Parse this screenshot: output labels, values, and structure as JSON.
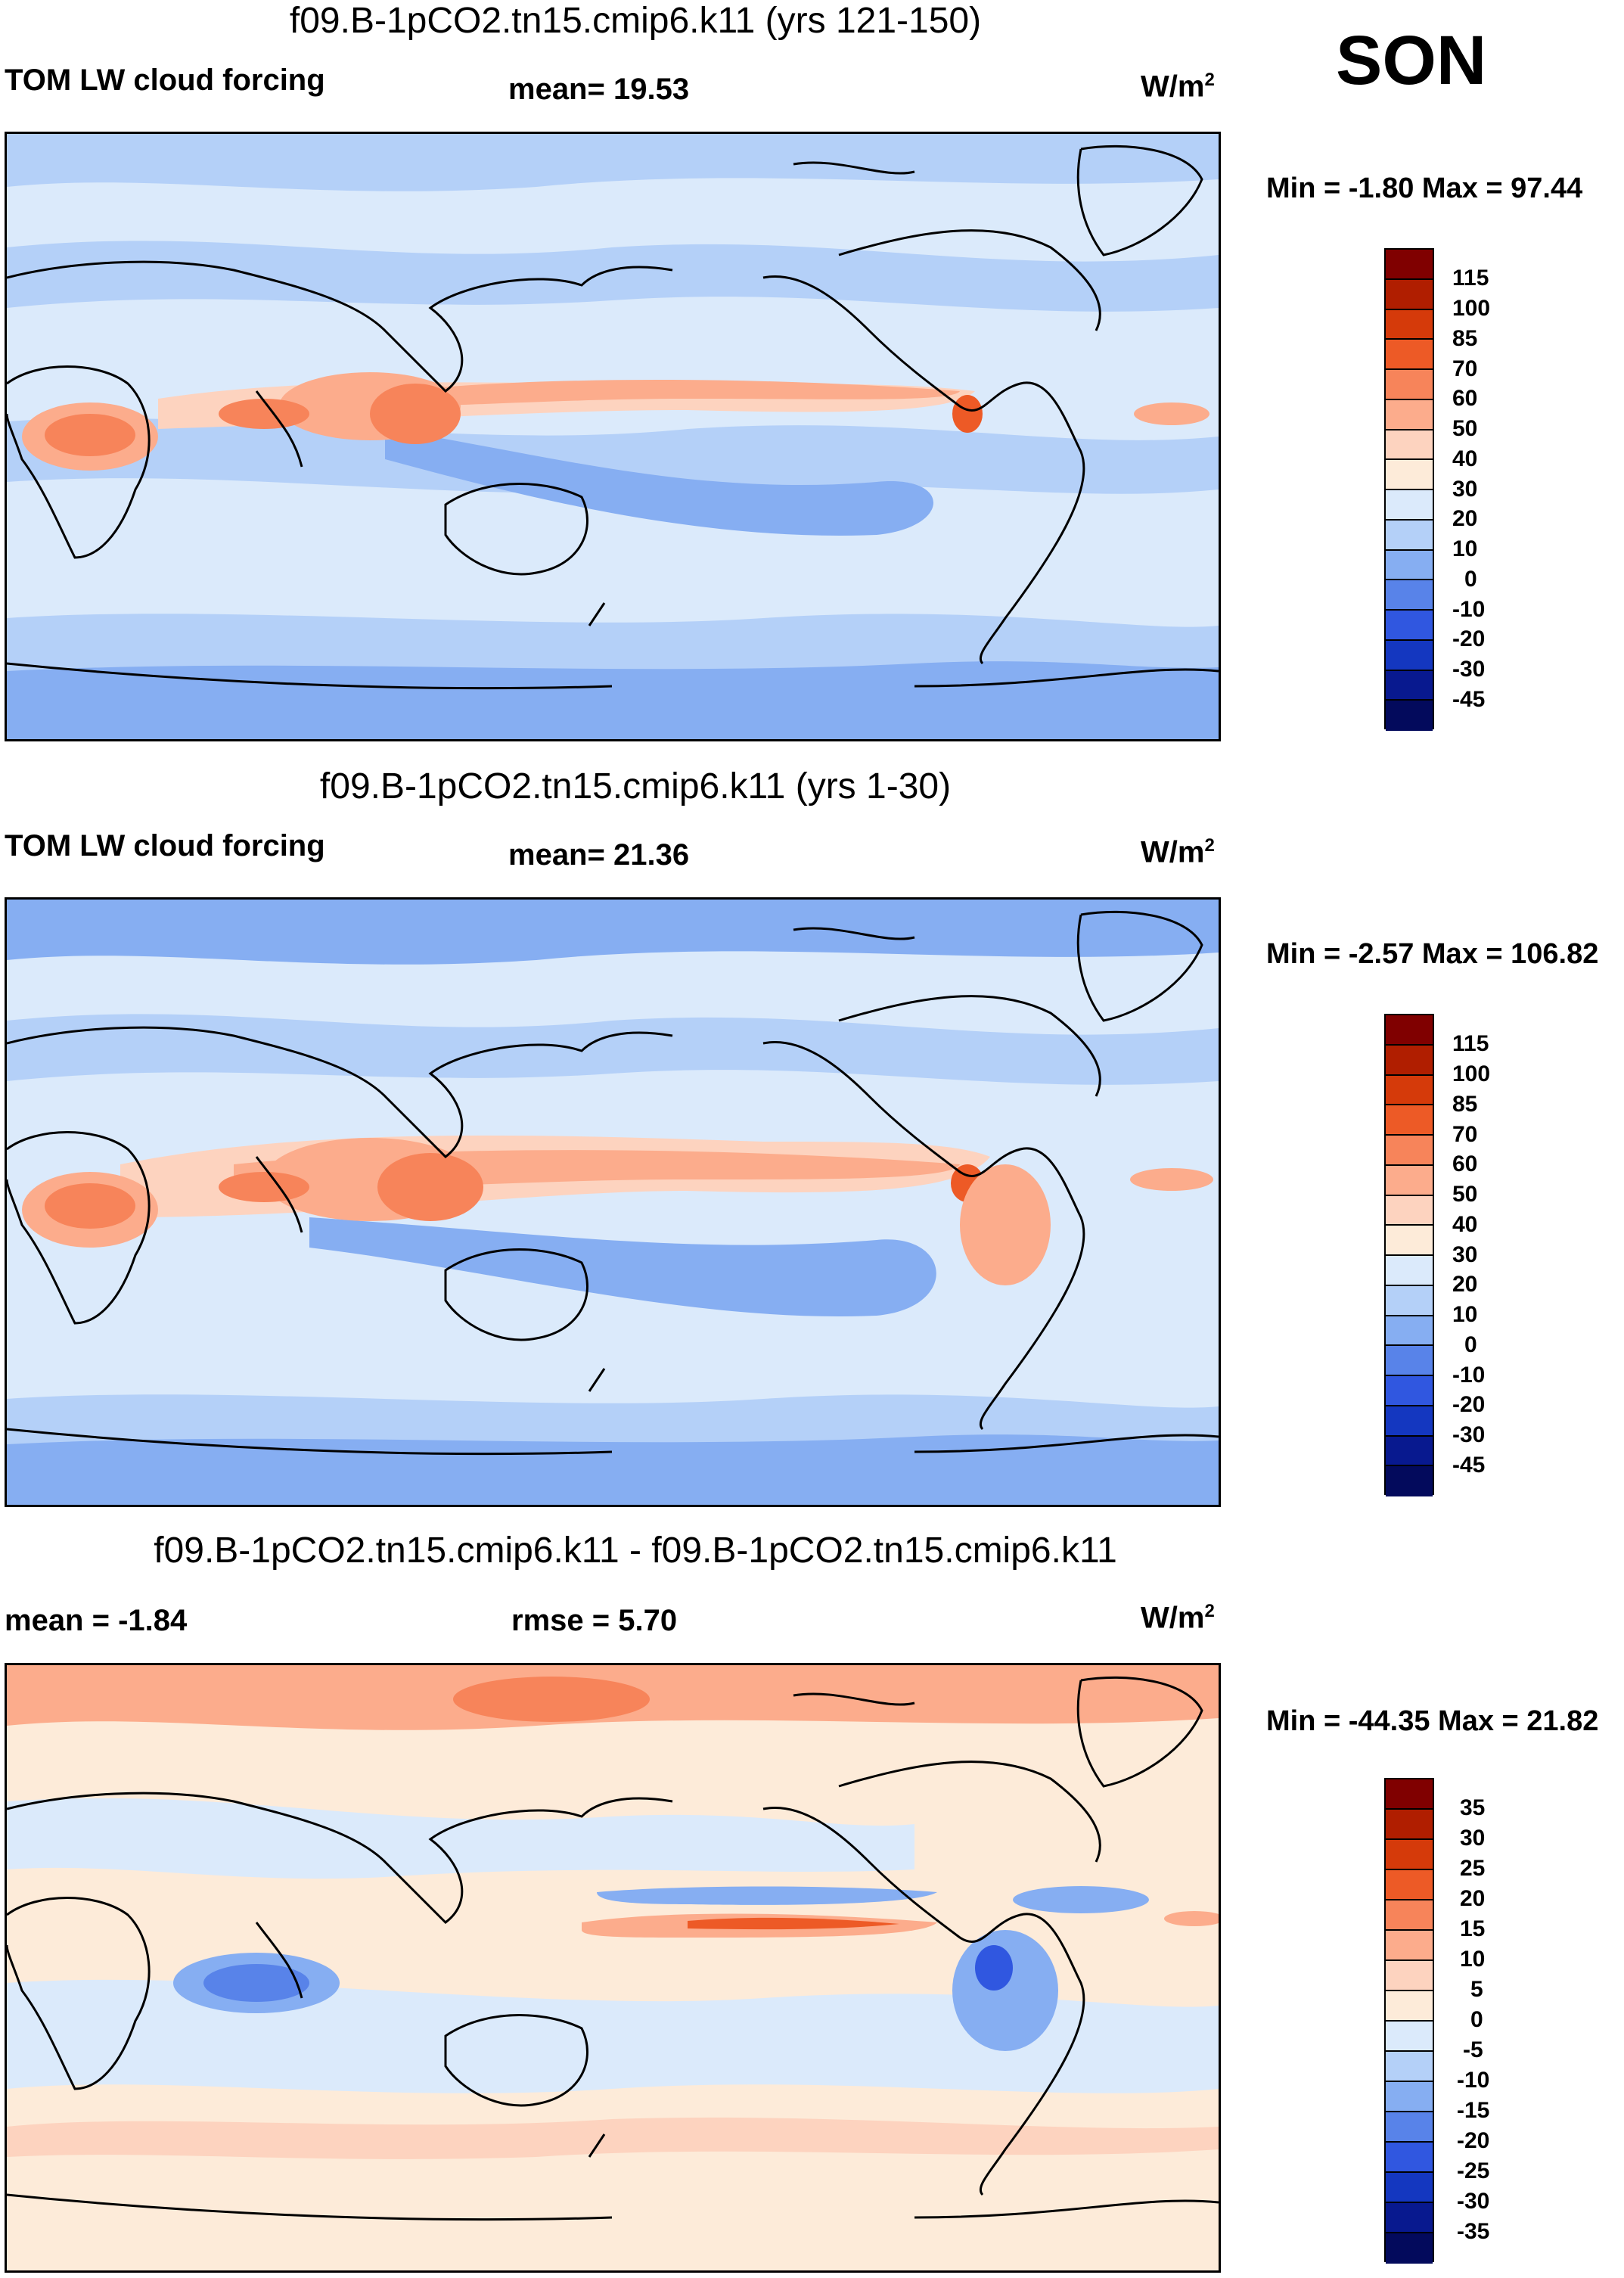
{
  "season": "SON",
  "panels": [
    {
      "title": "f09.B-1pCO2.tn15.cmip6.k11 (yrs 121-150)",
      "left_label": "TOM LW cloud forcing",
      "center_label": "mean=  19.53",
      "units": "W/m",
      "units_exp": "2",
      "minmax": "Min =  -1.80 Max =  97.44",
      "colorbar_levels": [
        "115",
        "100",
        "85",
        "70",
        "60",
        "50",
        "40",
        "30",
        "20",
        "10",
        "0",
        "-10",
        "-20",
        "-30",
        "-45"
      ]
    },
    {
      "title": "f09.B-1pCO2.tn15.cmip6.k11 (yrs 1-30)",
      "left_label": "TOM LW cloud forcing",
      "center_label": "mean=  21.36",
      "units": "W/m",
      "units_exp": "2",
      "minmax": "Min =  -2.57 Max = 106.82",
      "colorbar_levels": [
        "115",
        "100",
        "85",
        "70",
        "60",
        "50",
        "40",
        "30",
        "20",
        "10",
        "0",
        "-10",
        "-20",
        "-30",
        "-45"
      ]
    },
    {
      "title": "f09.B-1pCO2.tn15.cmip6.k11 - f09.B-1pCO2.tn15.cmip6.k11",
      "left_label": "mean =  -1.84",
      "center_label": "rmse =    5.70",
      "units": "W/m",
      "units_exp": "2",
      "minmax": "Min = -44.35 Max =  21.82",
      "colorbar_levels": [
        "35",
        "30",
        "25",
        "20",
        "15",
        "10",
        "5",
        "0",
        "-5",
        "-10",
        "-15",
        "-20",
        "-25",
        "-30",
        "-35"
      ]
    }
  ],
  "colors": {
    "abs_scale": [
      "#800000",
      "#b01e00",
      "#d53a0a",
      "#ed5a26",
      "#f7845a",
      "#fcac8c",
      "#fdd3bf",
      "#fdebd9",
      "#dbeafb",
      "#b4d0f8",
      "#86aef2",
      "#5883e9",
      "#3057e0",
      "#1437c0",
      "#08198f",
      "#030a5c"
    ],
    "diff_scale": [
      "#800000",
      "#b01e00",
      "#d53a0a",
      "#ed5a26",
      "#f7845a",
      "#fcac8c",
      "#fdd3bf",
      "#fdebd9",
      "#dbeafb",
      "#b4d0f8",
      "#86aef2",
      "#5883e9",
      "#3057e0",
      "#1437c0",
      "#08198f",
      "#030a5c"
    ],
    "coastline": "#000000"
  }
}
